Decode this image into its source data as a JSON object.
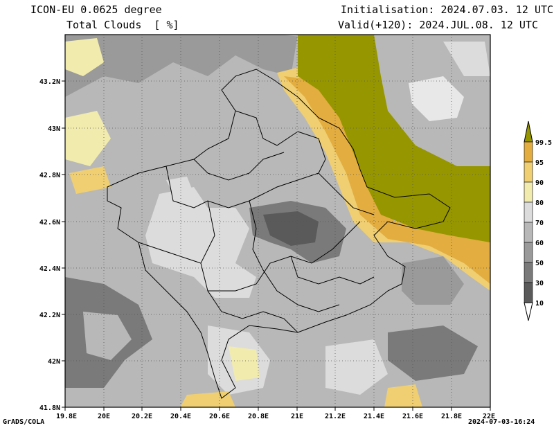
{
  "header": {
    "model": "ICON-EU 0.0625 degree",
    "variable": "Total Clouds  [ %]",
    "init": "Initialisation: 2024.07.03. 12 UTC",
    "valid": "Valid(+120): 2024.JUL.08. 12 UTC"
  },
  "lat_labels": [
    "43.2N",
    "43N",
    "42.8N",
    "42.6N",
    "42.4N",
    "42.2N",
    "42N",
    "41.8N"
  ],
  "lon_labels": [
    "19.8E",
    "20E",
    "20.2E",
    "20.4E",
    "20.6E",
    "20.8E",
    "21E",
    "21.2E",
    "21.4E",
    "21.6E",
    "21.8E",
    "22E"
  ],
  "colorbar": {
    "labels": [
      "10",
      "30",
      "50",
      "60",
      "70",
      "80",
      "90",
      "95",
      "99.5"
    ],
    "colors": [
      "#5a5a5a",
      "#7a7a7a",
      "#9a9a9a",
      "#b8b8b8",
      "#dcdcdc",
      "#f2ebae",
      "#efcf72",
      "#e3ad40",
      "#969600"
    ]
  },
  "footer": {
    "left": "GrADS/COLA",
    "right": "2024-07-03-16:24"
  }
}
